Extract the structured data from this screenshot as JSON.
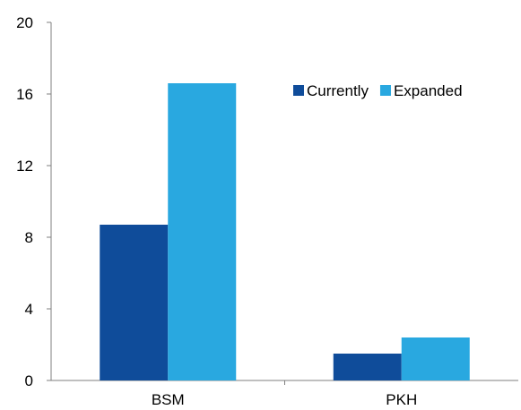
{
  "chart_data": {
    "type": "bar",
    "title": "",
    "xlabel": "",
    "ylabel": "",
    "categories": [
      "BSM",
      "PKH"
    ],
    "series": [
      {
        "name": "Currently",
        "values": [
          8.7,
          1.5
        ],
        "color": "#0f4c9a"
      },
      {
        "name": "Expanded",
        "values": [
          16.6,
          2.4
        ],
        "color": "#29a8e0"
      }
    ],
    "ylim": [
      0,
      20
    ],
    "yticks": [
      0,
      4,
      8,
      12,
      16,
      20
    ],
    "grid": false,
    "legend_position": "top-right"
  }
}
